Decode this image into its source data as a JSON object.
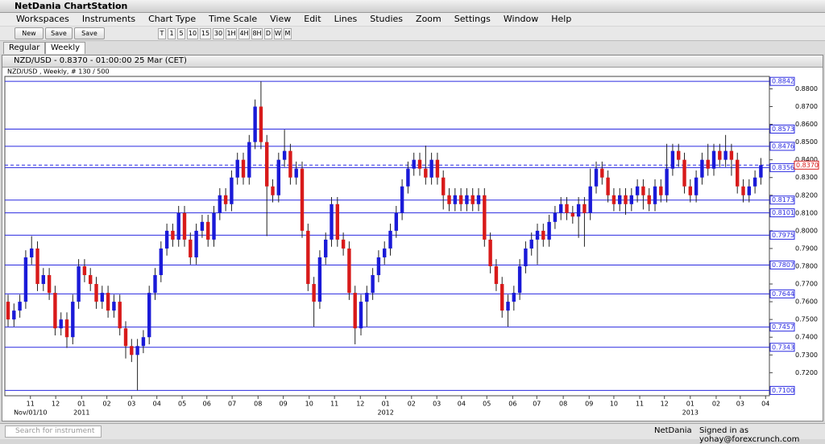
{
  "app": {
    "title": "NetDania ChartStation",
    "menu": [
      "Workspaces",
      "Instruments",
      "Chart Type",
      "Time Scale",
      "View",
      "Edit",
      "Lines",
      "Studies",
      "Zoom",
      "Settings",
      "Window",
      "Help"
    ],
    "toolbar_buttons": [
      "New",
      "Save",
      "Save as..."
    ],
    "timeframes": [
      "T",
      "1",
      "5",
      "10",
      "15",
      "30",
      "1H",
      "4H",
      "8H",
      "D",
      "W",
      "M"
    ],
    "tabs": [
      "Regular",
      "Weekly"
    ]
  },
  "chart_window": {
    "title": "NZD/USD - 0.8370 - 01:00:00  25 Mar (CET)"
  },
  "chart_data": {
    "type": "candlestick",
    "legend": "NZD/USD , Weekly, # 130 / 500",
    "up_color": "#1a1ad8",
    "down_color": "#d81a1a",
    "level_color": "#2a2ae0",
    "open": [
      0.76,
      0.75,
      0.755,
      0.76,
      0.785,
      0.79,
      0.77,
      0.775,
      0.765,
      0.745,
      0.75,
      0.74,
      0.76,
      0.78,
      0.775,
      0.77,
      0.76,
      0.765,
      0.755,
      0.76,
      0.745,
      0.735,
      0.73,
      0.735,
      0.74,
      0.765,
      0.775,
      0.79,
      0.8,
      0.795,
      0.81,
      0.795,
      0.785,
      0.8,
      0.805,
      0.795,
      0.81,
      0.82,
      0.815,
      0.83,
      0.84,
      0.83,
      0.85,
      0.87,
      0.85,
      0.825,
      0.82,
      0.84,
      0.845,
      0.83,
      0.835,
      0.8,
      0.77,
      0.76,
      0.785,
      0.795,
      0.815,
      0.795,
      0.79,
      0.765,
      0.745,
      0.76,
      0.765,
      0.775,
      0.785,
      0.79,
      0.8,
      0.81,
      0.825,
      0.835,
      0.84,
      0.835,
      0.83,
      0.84,
      0.83,
      0.82,
      0.815,
      0.82,
      0.815,
      0.82,
      0.815,
      0.82,
      0.795,
      0.78,
      0.77,
      0.755,
      0.76,
      0.765,
      0.78,
      0.79,
      0.795,
      0.8,
      0.795,
      0.805,
      0.81,
      0.815,
      0.81,
      0.808,
      0.815,
      0.81,
      0.825,
      0.835,
      0.83,
      0.82,
      0.815,
      0.82,
      0.815,
      0.82,
      0.825,
      0.82,
      0.815,
      0.825,
      0.82,
      0.835,
      0.845,
      0.84,
      0.825,
      0.82,
      0.83,
      0.84,
      0.835,
      0.845,
      0.84,
      0.845,
      0.84,
      0.825,
      0.82,
      0.825,
      0.83
    ],
    "high": [
      0.764,
      0.759,
      0.764,
      0.789,
      0.797,
      0.794,
      0.779,
      0.779,
      0.769,
      0.754,
      0.754,
      0.764,
      0.784,
      0.784,
      0.779,
      0.774,
      0.769,
      0.769,
      0.764,
      0.764,
      0.749,
      0.739,
      0.739,
      0.744,
      0.769,
      0.779,
      0.794,
      0.804,
      0.804,
      0.814,
      0.814,
      0.799,
      0.804,
      0.809,
      0.809,
      0.814,
      0.824,
      0.824,
      0.834,
      0.844,
      0.844,
      0.854,
      0.874,
      0.8842,
      0.854,
      0.829,
      0.844,
      0.857,
      0.849,
      0.839,
      0.839,
      0.804,
      0.774,
      0.789,
      0.799,
      0.819,
      0.819,
      0.799,
      0.794,
      0.769,
      0.764,
      0.769,
      0.779,
      0.789,
      0.794,
      0.804,
      0.814,
      0.829,
      0.839,
      0.844,
      0.844,
      0.848,
      0.844,
      0.844,
      0.834,
      0.824,
      0.824,
      0.824,
      0.824,
      0.824,
      0.824,
      0.824,
      0.799,
      0.784,
      0.774,
      0.764,
      0.769,
      0.784,
      0.794,
      0.799,
      0.804,
      0.804,
      0.809,
      0.814,
      0.819,
      0.819,
      0.814,
      0.819,
      0.819,
      0.835,
      0.839,
      0.839,
      0.834,
      0.824,
      0.824,
      0.824,
      0.824,
      0.829,
      0.829,
      0.824,
      0.829,
      0.829,
      0.849,
      0.849,
      0.849,
      0.844,
      0.829,
      0.834,
      0.844,
      0.849,
      0.849,
      0.849,
      0.854,
      0.849,
      0.844,
      0.829,
      0.829,
      0.834,
      0.841
    ],
    "low": [
      0.746,
      0.746,
      0.751,
      0.756,
      0.781,
      0.766,
      0.766,
      0.761,
      0.741,
      0.741,
      0.734,
      0.736,
      0.756,
      0.771,
      0.766,
      0.756,
      0.756,
      0.751,
      0.751,
      0.741,
      0.728,
      0.726,
      0.71,
      0.731,
      0.736,
      0.761,
      0.771,
      0.786,
      0.791,
      0.791,
      0.791,
      0.781,
      0.781,
      0.796,
      0.791,
      0.791,
      0.806,
      0.811,
      0.811,
      0.826,
      0.826,
      0.826,
      0.846,
      0.846,
      0.797,
      0.816,
      0.816,
      0.836,
      0.826,
      0.826,
      0.796,
      0.766,
      0.746,
      0.756,
      0.781,
      0.791,
      0.791,
      0.786,
      0.761,
      0.736,
      0.741,
      0.746,
      0.761,
      0.771,
      0.781,
      0.786,
      0.796,
      0.806,
      0.821,
      0.831,
      0.831,
      0.826,
      0.826,
      0.826,
      0.812,
      0.811,
      0.811,
      0.811,
      0.811,
      0.811,
      0.811,
      0.791,
      0.776,
      0.766,
      0.751,
      0.746,
      0.755,
      0.761,
      0.776,
      0.786,
      0.781,
      0.791,
      0.791,
      0.801,
      0.806,
      0.806,
      0.804,
      0.796,
      0.791,
      0.806,
      0.821,
      0.826,
      0.816,
      0.811,
      0.811,
      0.809,
      0.811,
      0.816,
      0.812,
      0.811,
      0.811,
      0.816,
      0.816,
      0.831,
      0.836,
      0.821,
      0.816,
      0.816,
      0.826,
      0.831,
      0.831,
      0.836,
      0.836,
      0.831,
      0.821,
      0.816,
      0.816,
      0.821,
      0.826
    ],
    "close": [
      0.75,
      0.755,
      0.76,
      0.785,
      0.79,
      0.77,
      0.775,
      0.765,
      0.745,
      0.75,
      0.74,
      0.76,
      0.78,
      0.775,
      0.77,
      0.76,
      0.765,
      0.755,
      0.76,
      0.745,
      0.735,
      0.73,
      0.735,
      0.74,
      0.765,
      0.775,
      0.79,
      0.8,
      0.795,
      0.81,
      0.795,
      0.785,
      0.8,
      0.805,
      0.795,
      0.81,
      0.82,
      0.815,
      0.83,
      0.84,
      0.83,
      0.85,
      0.87,
      0.85,
      0.825,
      0.82,
      0.84,
      0.845,
      0.83,
      0.835,
      0.8,
      0.77,
      0.76,
      0.785,
      0.795,
      0.815,
      0.795,
      0.79,
      0.765,
      0.745,
      0.76,
      0.765,
      0.775,
      0.785,
      0.79,
      0.8,
      0.81,
      0.825,
      0.835,
      0.84,
      0.835,
      0.83,
      0.84,
      0.83,
      0.82,
      0.815,
      0.82,
      0.815,
      0.82,
      0.815,
      0.82,
      0.795,
      0.78,
      0.77,
      0.755,
      0.76,
      0.765,
      0.78,
      0.79,
      0.795,
      0.8,
      0.795,
      0.805,
      0.81,
      0.815,
      0.81,
      0.808,
      0.815,
      0.81,
      0.825,
      0.835,
      0.83,
      0.82,
      0.815,
      0.82,
      0.815,
      0.82,
      0.825,
      0.82,
      0.815,
      0.825,
      0.82,
      0.835,
      0.845,
      0.84,
      0.825,
      0.82,
      0.83,
      0.84,
      0.835,
      0.845,
      0.84,
      0.845,
      0.84,
      0.825,
      0.82,
      0.825,
      0.83,
      0.837
    ],
    "xlim": [
      -0.55,
      129.45
    ],
    "xticks": [
      {
        "value": 3.8,
        "label": "11"
      },
      {
        "value": 8.1,
        "label": "12"
      },
      {
        "value": 12.5,
        "label": "01"
      },
      {
        "value": 16.8,
        "label": "02"
      },
      {
        "value": 21.0,
        "label": "03"
      },
      {
        "value": 25.3,
        "label": "04"
      },
      {
        "value": 29.6,
        "label": "05"
      },
      {
        "value": 33.8,
        "label": "06"
      },
      {
        "value": 38.1,
        "label": "07"
      },
      {
        "value": 42.5,
        "label": "08"
      },
      {
        "value": 46.8,
        "label": "09"
      },
      {
        "value": 51.2,
        "label": "10"
      },
      {
        "value": 55.5,
        "label": "11"
      },
      {
        "value": 59.9,
        "label": "12"
      },
      {
        "value": 64.2,
        "label": "01"
      },
      {
        "value": 68.6,
        "label": "02"
      },
      {
        "value": 72.9,
        "label": "03"
      },
      {
        "value": 77.1,
        "label": "04"
      },
      {
        "value": 81.4,
        "label": "05"
      },
      {
        "value": 85.8,
        "label": "06"
      },
      {
        "value": 89.9,
        "label": "07"
      },
      {
        "value": 94.4,
        "label": "08"
      },
      {
        "value": 98.8,
        "label": "09"
      },
      {
        "value": 103.0,
        "label": "10"
      },
      {
        "value": 107.4,
        "label": "11"
      },
      {
        "value": 111.6,
        "label": "12"
      },
      {
        "value": 116.0,
        "label": "01"
      },
      {
        "value": 120.4,
        "label": "02"
      },
      {
        "value": 124.5,
        "label": "03"
      },
      {
        "value": 128.8,
        "label": "04"
      }
    ],
    "year_labels": [
      {
        "value": 3.8,
        "label": "Nov/01/10"
      },
      {
        "value": 12.5,
        "label": "2011"
      },
      {
        "value": 64.2,
        "label": "2012"
      },
      {
        "value": 116.0,
        "label": "2013"
      }
    ],
    "ylim": [
      0.707,
      0.887
    ],
    "yticks": [
      {
        "value": 0.72,
        "label": "0.7200"
      },
      {
        "value": 0.73,
        "label": "0.7300"
      },
      {
        "value": 0.74,
        "label": "0.7400"
      },
      {
        "value": 0.75,
        "label": "0.7500"
      },
      {
        "value": 0.76,
        "label": "0.7600"
      },
      {
        "value": 0.77,
        "label": "0.7700"
      },
      {
        "value": 0.78,
        "label": "0.7800"
      },
      {
        "value": 0.79,
        "label": "0.7900"
      },
      {
        "value": 0.8,
        "label": "0.8000"
      },
      {
        "value": 0.81,
        "label": "0.8100"
      },
      {
        "value": 0.82,
        "label": "0.8200"
      },
      {
        "value": 0.83,
        "label": "0.8300"
      },
      {
        "value": 0.84,
        "label": "0.8400"
      },
      {
        "value": 0.85,
        "label": "0.8500"
      },
      {
        "value": 0.86,
        "label": "0.8600"
      },
      {
        "value": 0.87,
        "label": "0.8700"
      },
      {
        "value": 0.88,
        "label": "0.8800"
      }
    ],
    "levels": [
      0.8842,
      0.8573,
      0.8476,
      0.8356,
      0.8173,
      0.8101,
      0.7975,
      0.7807,
      0.7644,
      0.7457,
      0.7343,
      {
        "value": 0.71,
        "label": "0.7100"
      }
    ],
    "last_price": {
      "value": 0.837,
      "label": "0.8370"
    }
  },
  "status_bar": {
    "search_placeholder": "Search for instrument",
    "brand": "NetDania",
    "signed_in": "Signed in as yohay@forexcrunch.com"
  }
}
